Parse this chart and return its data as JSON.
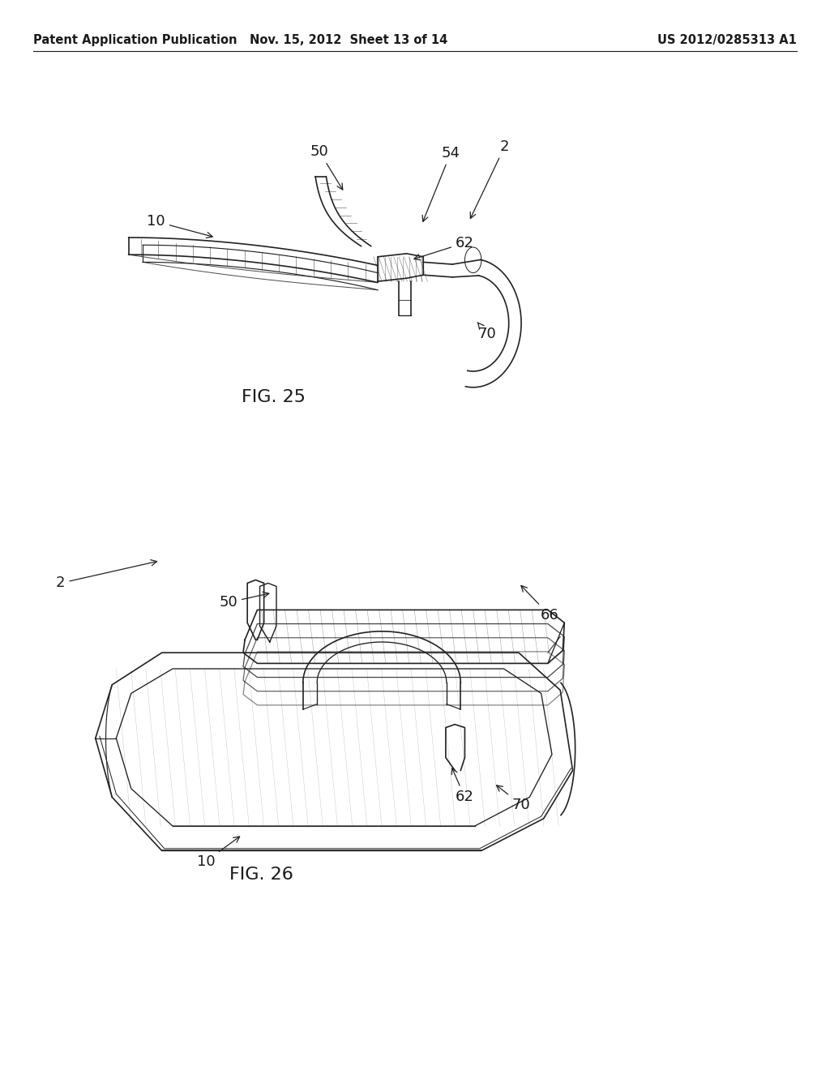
{
  "background_color": "#ffffff",
  "header_left": "Patent Application Publication",
  "header_center": "Nov. 15, 2012  Sheet 13 of 14",
  "header_right": "US 2012/0285313 A1",
  "fig25_label": "FIG. 25",
  "fig26_label": "FIG. 26",
  "text_color": "#1a1a1a",
  "line_color": "#222222",
  "annotation_fontsize": 13,
  "header_fontsize": 10.5,
  "fig_label_fontsize": 16
}
